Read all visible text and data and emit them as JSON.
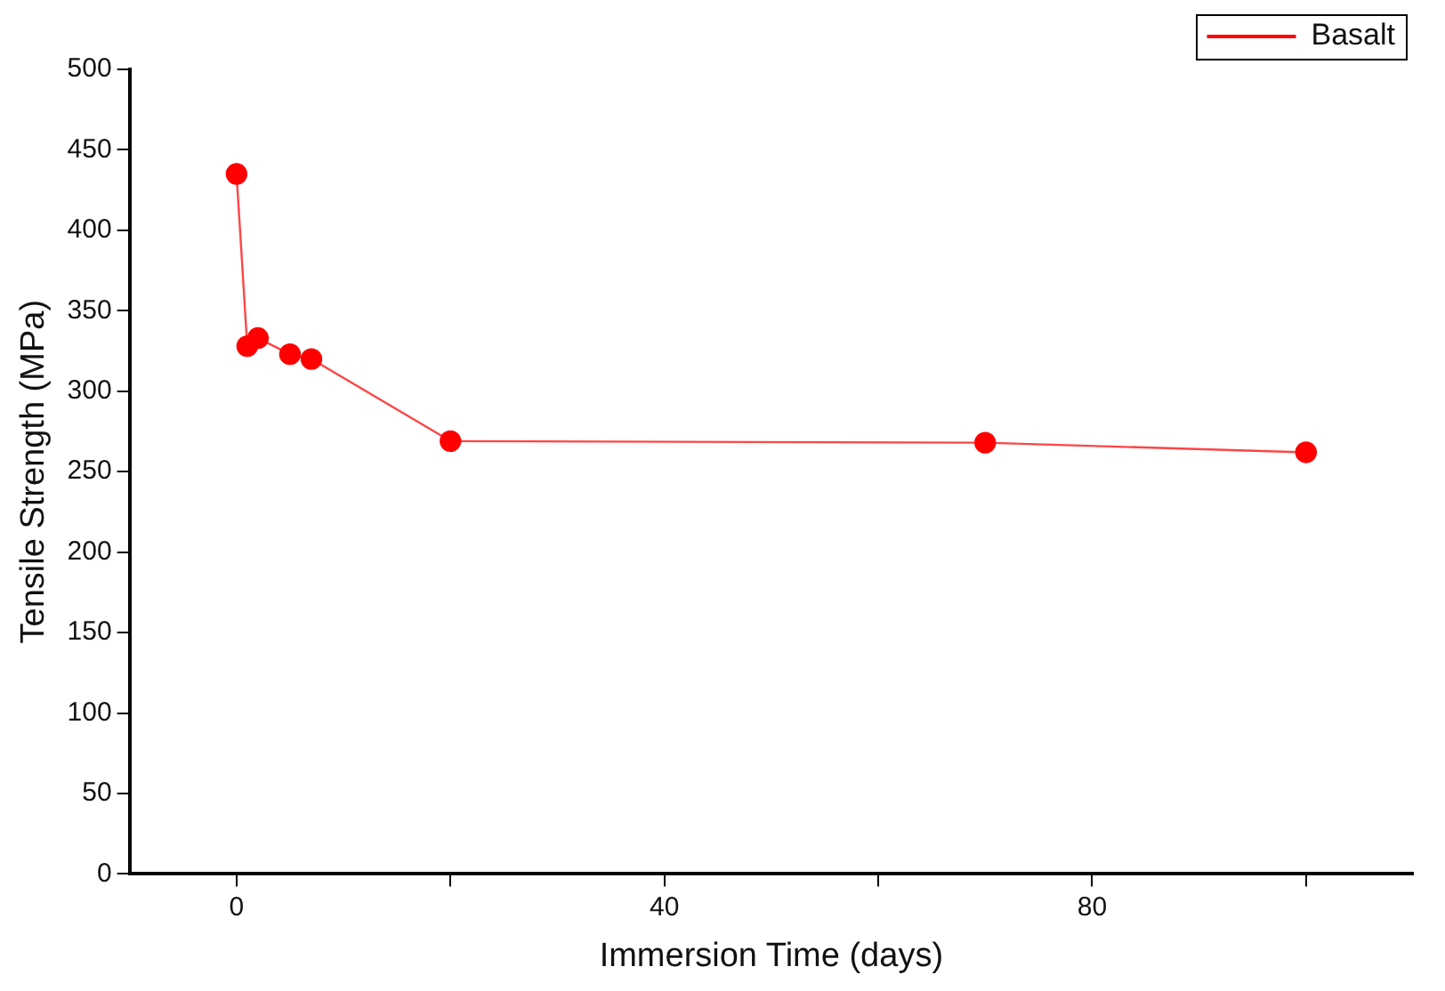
{
  "chart_data": {
    "type": "line",
    "xlabel": "Immersion Time (days)",
    "ylabel": "Tensile Strength (MPa)",
    "x": [
      0,
      1,
      2,
      5,
      7,
      20,
      70,
      100
    ],
    "series": [
      {
        "name": "Basalt",
        "color": "#ff0000",
        "values": [
          435,
          328,
          333,
          323,
          320,
          269,
          268,
          262
        ]
      }
    ],
    "xlim": [
      -10,
      110
    ],
    "xticks": [
      0,
      {
        "value": 20,
        "label": null
      },
      40,
      {
        "value": 60,
        "label": null
      },
      80,
      {
        "value": 100,
        "label": null
      }
    ],
    "ylim": [
      0,
      500
    ],
    "yticks": [
      0,
      50,
      100,
      150,
      200,
      250,
      300,
      350,
      400,
      450,
      500
    ],
    "grid": false,
    "legend": "top right",
    "marker": "circle",
    "line_style": "solid"
  }
}
